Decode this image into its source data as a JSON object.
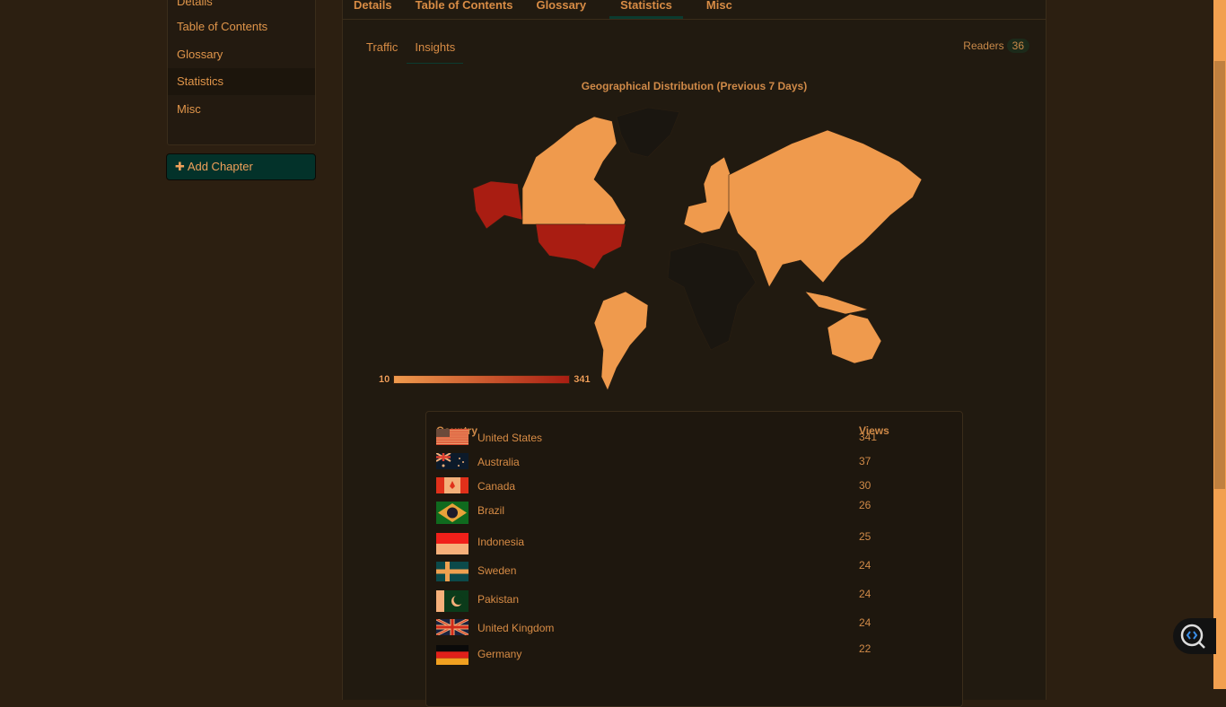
{
  "sidebar": {
    "items": [
      {
        "label": "Details"
      },
      {
        "label": "Table of Contents"
      },
      {
        "label": "Glossary"
      },
      {
        "label": "Statistics",
        "active": true
      },
      {
        "label": "Misc"
      }
    ],
    "add_chapter": "Add Chapter"
  },
  "tabs": [
    {
      "label": "Details"
    },
    {
      "label": "Table of Contents"
    },
    {
      "label": "Glossary"
    },
    {
      "label": "Statistics",
      "active": true
    },
    {
      "label": "Misc"
    }
  ],
  "subtabs": [
    {
      "label": "Traffic"
    },
    {
      "label": "Insights",
      "active": true
    }
  ],
  "readers": {
    "label": "Readers",
    "count": "36"
  },
  "map": {
    "title": "Geographical Distribution (Previous 7 Days)",
    "legend_min": "10",
    "legend_max": "341",
    "color_low": "#ef9a4d",
    "color_high": "#a91d12",
    "no_data_color": "#1a1610"
  },
  "table": {
    "headers": {
      "country": "Country",
      "views": "Views"
    },
    "rows": [
      {
        "country": "United States",
        "views": "341",
        "flag": "us"
      },
      {
        "country": "Australia",
        "views": "37",
        "flag": "au"
      },
      {
        "country": "Canada",
        "views": "30",
        "flag": "ca"
      },
      {
        "country": "Brazil",
        "views": "26",
        "flag": "br"
      },
      {
        "country": "Indonesia",
        "views": "25",
        "flag": "id"
      },
      {
        "country": "Sweden",
        "views": "24",
        "flag": "se"
      },
      {
        "country": "Pakistan",
        "views": "24",
        "flag": "pk"
      },
      {
        "country": "United Kingdom",
        "views": "24",
        "flag": "gb"
      },
      {
        "country": "Germany",
        "views": "22",
        "flag": "de"
      }
    ]
  }
}
